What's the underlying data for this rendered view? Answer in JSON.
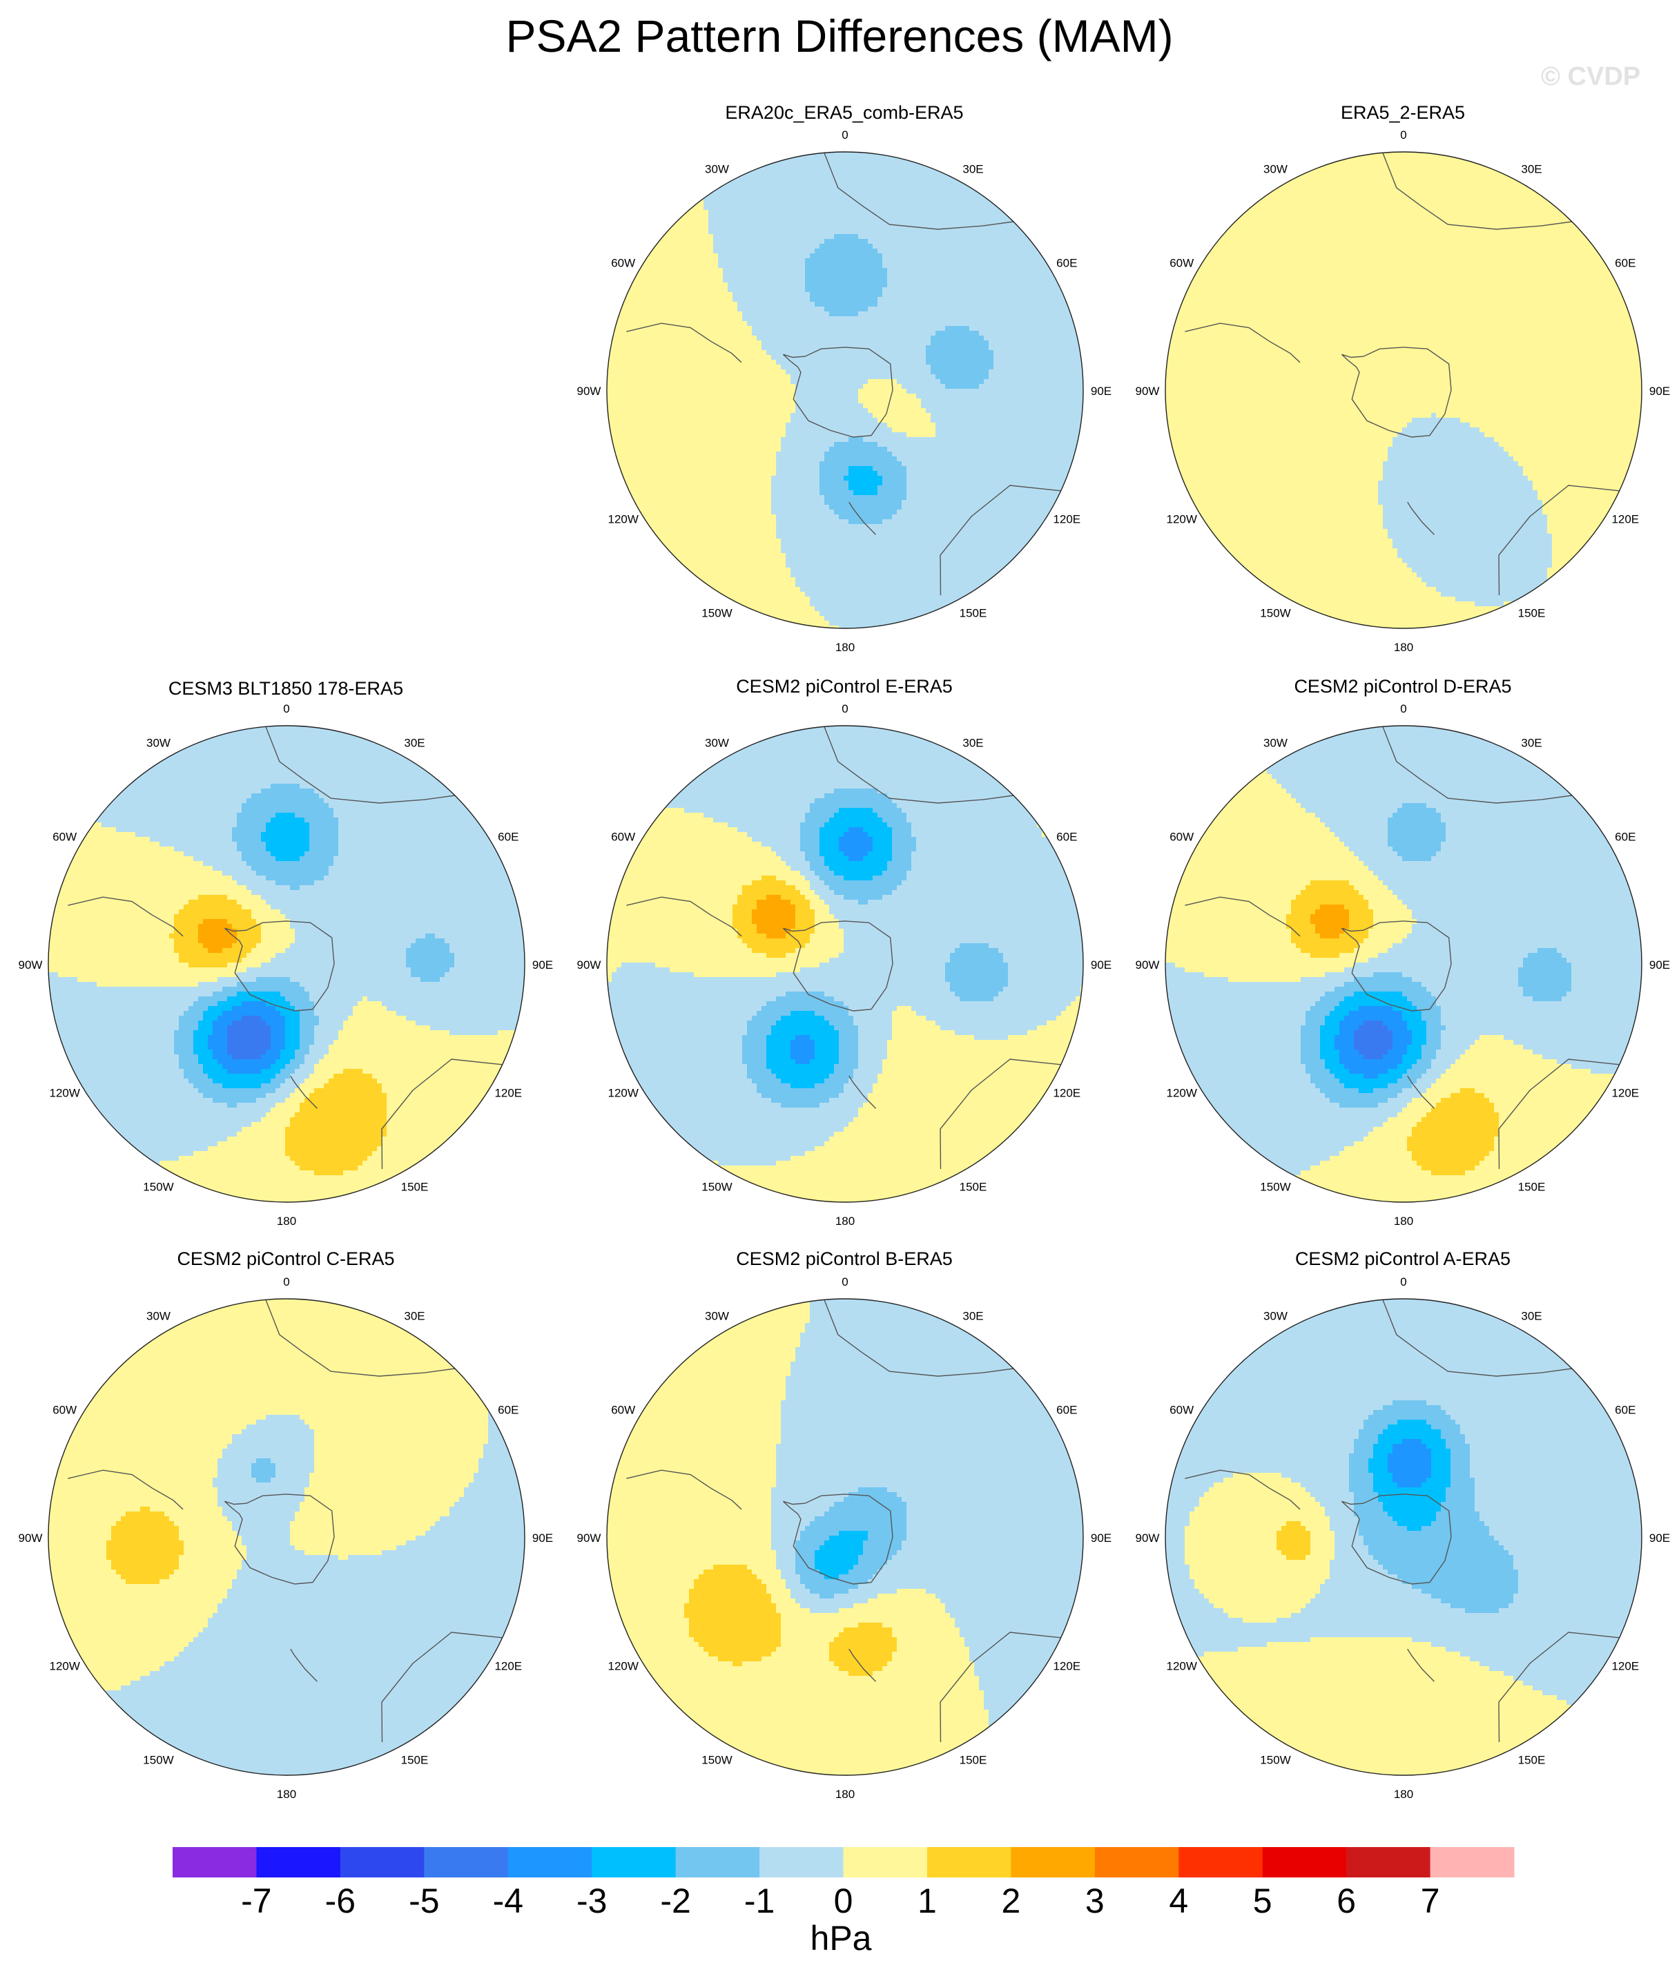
{
  "title": "PSA2 Pattern Differences (MAM)",
  "watermark": "© CVDP",
  "lon_labels": {
    "0": "0",
    "30E": "30E",
    "60E": "60E",
    "90E": "90E",
    "120E": "120E",
    "150E": "150E",
    "180": "180",
    "150W": "150W",
    "120W": "120W",
    "90W": "90W",
    "60W": "60W",
    "30W": "30W"
  },
  "colors": {
    "levels": [
      -7,
      -6,
      -5,
      -4,
      -3,
      -2,
      -1,
      0,
      1,
      2,
      3,
      4,
      5,
      6,
      7
    ],
    "palette": [
      "#8a2be2",
      "#1a16ff",
      "#2e48f0",
      "#3a7af0",
      "#1e96ff",
      "#00bfff",
      "#73c6f0",
      "#b5ddf2",
      "#fff799",
      "#ffd327",
      "#ffa800",
      "#ff7a00",
      "#ff3000",
      "#e80000",
      "#cc1a1a",
      "#ffb3b3"
    ]
  },
  "chart_data": {
    "type": "heatmap",
    "projection": "south-polar stereographic",
    "units": "hPa",
    "colorbar": {
      "ticks": [
        "-7",
        "-6",
        "-5",
        "-4",
        "-3",
        "-2",
        "-1",
        "0",
        "1",
        "2",
        "3",
        "4",
        "5",
        "6",
        "7"
      ],
      "label": "hPa"
    },
    "panels": [
      {
        "title": "ERA20c_ERA5_comb-ERA5",
        "features": [
          {
            "lon": 0,
            "colat": 0.48,
            "amp": -1.5,
            "sig": 0.19
          },
          {
            "lon": 75,
            "colat": 0.5,
            "amp": -1.6,
            "sig": 0.14
          },
          {
            "lon": 168,
            "colat": 0.38,
            "amp": -2.3,
            "sig": 0.15
          },
          {
            "lon": -100,
            "colat": 0.9,
            "amp": 0.8,
            "sig": 0.3
          },
          {
            "lon": 120,
            "colat": 0.25,
            "amp": 0.7,
            "sig": 0.12
          }
        ]
      },
      {
        "title": "ERA5_2-ERA5",
        "features": [
          {
            "lon": 0,
            "colat": 0.7,
            "amp": 0.7,
            "sig": 0.14
          },
          {
            "lon": 60,
            "colat": 0.55,
            "amp": 0.6,
            "sig": 0.25
          },
          {
            "lon": -110,
            "colat": 0.6,
            "amp": 0.7,
            "sig": 0.3
          },
          {
            "lon": 160,
            "colat": 0.4,
            "amp": -0.6,
            "sig": 0.15
          }
        ]
      },
      {
        "title": "CESM3 BLT1850 178-ERA5",
        "features": [
          {
            "lon": 0,
            "colat": 0.53,
            "amp": -2.4,
            "sig": 0.17
          },
          {
            "lon": -70,
            "colat": 0.3,
            "amp": 2.6,
            "sig": 0.15
          },
          {
            "lon": -155,
            "colat": 0.35,
            "amp": -5.0,
            "sig": 0.18
          },
          {
            "lon": 165,
            "colat": 0.65,
            "amp": 2.0,
            "sig": 0.22
          },
          {
            "lon": 88,
            "colat": 0.6,
            "amp": -1.4,
            "sig": 0.12
          }
        ]
      },
      {
        "title": "CESM2 piControl E-ERA5",
        "features": [
          {
            "lon": 5,
            "colat": 0.5,
            "amp": -3.3,
            "sig": 0.16
          },
          {
            "lon": -55,
            "colat": 0.35,
            "amp": 2.7,
            "sig": 0.13
          },
          {
            "lon": -155,
            "colat": 0.4,
            "amp": -3.3,
            "sig": 0.17
          },
          {
            "lon": 95,
            "colat": 0.55,
            "amp": -1.6,
            "sig": 0.15
          },
          {
            "lon": 150,
            "colat": 0.7,
            "amp": 0.7,
            "sig": 0.3
          }
        ]
      },
      {
        "title": "CESM2 piControl D-ERA5",
        "features": [
          {
            "lon": 5,
            "colat": 0.55,
            "amp": -1.5,
            "sig": 0.14
          },
          {
            "lon": -60,
            "colat": 0.35,
            "amp": 2.4,
            "sig": 0.14
          },
          {
            "lon": -160,
            "colat": 0.35,
            "amp": -4.6,
            "sig": 0.18
          },
          {
            "lon": 165,
            "colat": 0.7,
            "amp": 1.8,
            "sig": 0.2
          },
          {
            "lon": 95,
            "colat": 0.6,
            "amp": -1.4,
            "sig": 0.14
          }
        ]
      },
      {
        "title": "CESM2 piControl C-ERA5",
        "features": [
          {
            "lon": -40,
            "colat": 0.7,
            "amp": 0.7,
            "sig": 0.25
          },
          {
            "lon": -95,
            "colat": 0.6,
            "amp": 1.8,
            "sig": 0.14
          },
          {
            "lon": -20,
            "colat": 0.3,
            "amp": -1.3,
            "sig": 0.12
          },
          {
            "lon": 150,
            "colat": 0.6,
            "amp": -0.8,
            "sig": 0.25
          },
          {
            "lon": 60,
            "colat": 0.3,
            "amp": 0.6,
            "sig": 0.15
          }
        ]
      },
      {
        "title": "CESM2 piControl B-ERA5",
        "features": [
          {
            "lon": -150,
            "colat": 0.15,
            "amp": -2.4,
            "sig": 0.14
          },
          {
            "lon": 60,
            "colat": 0.15,
            "amp": -1.5,
            "sig": 0.14
          },
          {
            "lon": -125,
            "colat": 0.55,
            "amp": 1.8,
            "sig": 0.2
          },
          {
            "lon": 170,
            "colat": 0.45,
            "amp": 1.5,
            "sig": 0.15
          },
          {
            "lon": 90,
            "colat": 0.75,
            "amp": -0.7,
            "sig": 0.2
          }
        ]
      },
      {
        "title": "CESM2 piControl A-ERA5",
        "features": [
          {
            "lon": 5,
            "colat": 0.35,
            "amp": -3.0,
            "sig": 0.15
          },
          {
            "lon": 20,
            "colat": 0.05,
            "amp": -1.5,
            "sig": 0.2
          },
          {
            "lon": -92,
            "colat": 0.45,
            "amp": 1.5,
            "sig": 0.1
          },
          {
            "lon": 170,
            "colat": 0.7,
            "amp": 0.7,
            "sig": 0.2
          },
          {
            "lon": 120,
            "colat": 0.4,
            "amp": -1.2,
            "sig": 0.2
          }
        ]
      }
    ]
  }
}
